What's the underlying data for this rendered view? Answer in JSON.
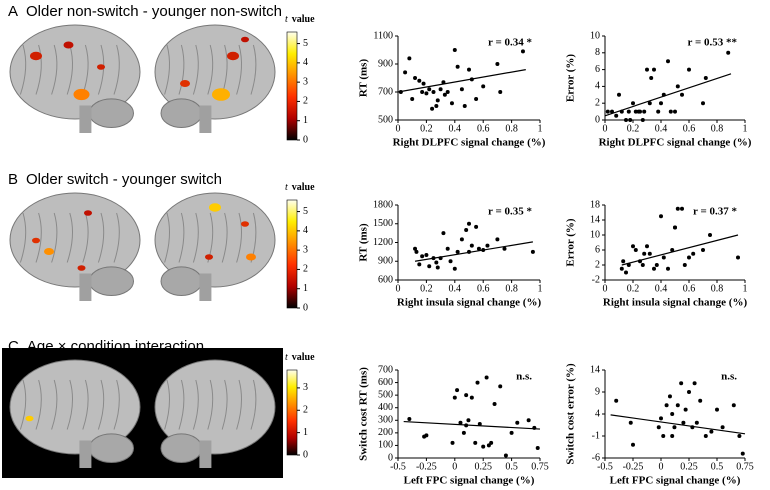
{
  "panels": [
    {
      "letter": "A",
      "title": "Older non-switch - younger non-switch"
    },
    {
      "letter": "B",
      "title": "Older switch - younger switch"
    },
    {
      "letter": "C",
      "title": "Age × condition interaction"
    }
  ],
  "chart_data": [
    {
      "type": "colorbar",
      "label_symbol": "t",
      "label": "value",
      "colors": [
        "#000000",
        "#b00000",
        "#ff3000",
        "#ff9000",
        "#ffee00",
        "#ffffee"
      ],
      "ylim": [
        0,
        5.6
      ],
      "yticks": [
        0,
        1,
        2,
        3,
        4,
        5
      ]
    },
    {
      "type": "scatter",
      "xlabel": "Right DLPFC signal change (%)",
      "ylabel": "RT (ms)",
      "annotation": "r = 0.34 *",
      "color": "#000000",
      "x": [
        0.02,
        0.05,
        0.08,
        0.1,
        0.12,
        0.15,
        0.17,
        0.18,
        0.2,
        0.22,
        0.24,
        0.25,
        0.27,
        0.28,
        0.3,
        0.32,
        0.33,
        0.35,
        0.38,
        0.4,
        0.42,
        0.45,
        0.47,
        0.5,
        0.52,
        0.55,
        0.6,
        0.7,
        0.72,
        0.88
      ],
      "values": [
        700,
        840,
        940,
        650,
        800,
        780,
        700,
        760,
        690,
        720,
        580,
        700,
        600,
        640,
        720,
        770,
        680,
        700,
        620,
        1000,
        880,
        720,
        600,
        860,
        790,
        650,
        740,
        900,
        700,
        990
      ],
      "trend": {
        "x": [
          0,
          0.9
        ],
        "y": [
          700,
          860
        ]
      },
      "xlim": [
        0,
        1
      ],
      "ylim": [
        500,
        1100
      ],
      "xticks": [
        0,
        0.2,
        0.4,
        0.6,
        0.8,
        1
      ],
      "yticks": [
        500,
        700,
        900,
        1100
      ]
    },
    {
      "type": "scatter",
      "xlabel": "Right DLPFC signal change (%)",
      "ylabel": "Error (%)",
      "annotation": "r = 0.53 **",
      "color": "#000000",
      "x": [
        0.02,
        0.05,
        0.08,
        0.1,
        0.12,
        0.15,
        0.17,
        0.18,
        0.2,
        0.22,
        0.24,
        0.25,
        0.27,
        0.28,
        0.3,
        0.32,
        0.33,
        0.35,
        0.38,
        0.4,
        0.42,
        0.45,
        0.47,
        0.5,
        0.52,
        0.55,
        0.6,
        0.7,
        0.72,
        0.88
      ],
      "values": [
        1,
        1,
        0.5,
        3,
        1,
        0,
        1,
        0,
        2,
        1,
        1,
        1,
        0,
        1,
        6,
        2,
        5,
        6,
        1,
        2,
        3,
        7,
        1,
        1,
        4,
        3,
        6,
        2,
        5,
        8
      ],
      "trend": {
        "x": [
          0,
          0.9
        ],
        "y": [
          0.5,
          5.5
        ]
      },
      "xlim": [
        0,
        1
      ],
      "ylim": [
        0,
        10
      ],
      "xticks": [
        0,
        0.2,
        0.4,
        0.6,
        0.8,
        1
      ],
      "yticks": [
        0,
        2,
        4,
        6,
        8,
        10
      ]
    },
    {
      "type": "colorbar",
      "label_symbol": "t",
      "label": "value",
      "colors": [
        "#000000",
        "#b00000",
        "#ff3000",
        "#ff9000",
        "#ffee00",
        "#ffffee"
      ],
      "ylim": [
        0,
        5.6
      ],
      "yticks": [
        0,
        1,
        2,
        3,
        4,
        5
      ]
    },
    {
      "type": "scatter",
      "xlabel": "Right insula signal change (%)",
      "ylabel": "RT (ms)",
      "annotation": "r = 0.35 *",
      "color": "#000000",
      "x": [
        0.12,
        0.13,
        0.15,
        0.17,
        0.2,
        0.22,
        0.25,
        0.27,
        0.28,
        0.3,
        0.32,
        0.35,
        0.37,
        0.4,
        0.42,
        0.45,
        0.48,
        0.5,
        0.5,
        0.52,
        0.55,
        0.57,
        0.6,
        0.63,
        0.7,
        0.75,
        0.95
      ],
      "values": [
        1100,
        1050,
        850,
        980,
        1000,
        820,
        950,
        880,
        800,
        950,
        1350,
        1100,
        900,
        780,
        1050,
        1250,
        1400,
        1050,
        1500,
        1150,
        1450,
        1100,
        1080,
        1150,
        1250,
        1100,
        1050
      ],
      "trend": {
        "x": [
          0.12,
          0.95
        ],
        "y": [
          900,
          1210
        ]
      },
      "xlim": [
        0,
        1
      ],
      "ylim": [
        600,
        1800
      ],
      "xticks": [
        0,
        0.2,
        0.4,
        0.6,
        0.8,
        1
      ],
      "yticks": [
        600,
        900,
        1200,
        1500,
        1800
      ]
    },
    {
      "type": "scatter",
      "xlabel": "Right insula signal change (%)",
      "ylabel": "Error (%)",
      "annotation": "r = 0.37 *",
      "color": "#000000",
      "x": [
        0.12,
        0.13,
        0.15,
        0.17,
        0.2,
        0.22,
        0.25,
        0.27,
        0.28,
        0.3,
        0.32,
        0.35,
        0.37,
        0.4,
        0.42,
        0.45,
        0.48,
        0.5,
        0.5,
        0.52,
        0.55,
        0.57,
        0.6,
        0.63,
        0.7,
        0.75,
        0.95
      ],
      "values": [
        1,
        3,
        0,
        2,
        7,
        6,
        3,
        2,
        5,
        7,
        5,
        1,
        2,
        15,
        4,
        1,
        6,
        12,
        12,
        17,
        17,
        2,
        4,
        5,
        6,
        10,
        4
      ],
      "trend": {
        "x": [
          0.12,
          0.95
        ],
        "y": [
          2,
          10
        ]
      },
      "xlim": [
        0,
        1
      ],
      "ylim": [
        -2,
        18
      ],
      "xticks": [
        0,
        0.2,
        0.4,
        0.6,
        0.8,
        1
      ],
      "yticks": [
        -2,
        2,
        6,
        10,
        14,
        18
      ]
    },
    {
      "type": "colorbar",
      "label_symbol": "t",
      "label": "value",
      "colors": [
        "#000000",
        "#b00000",
        "#ff3000",
        "#ff9000",
        "#ffee00",
        "#ffffee"
      ],
      "ylim": [
        0,
        3.8
      ],
      "yticks": [
        0,
        1,
        2,
        3
      ]
    },
    {
      "type": "scatter",
      "xlabel": "Left FPC signal change (%)",
      "ylabel": "Switch cost RT (ms)",
      "annotation": "n.s.",
      "color": "#000000",
      "x": [
        -0.4,
        -0.27,
        -0.25,
        -0.02,
        0,
        0.02,
        0.05,
        0.08,
        0.1,
        0.1,
        0.12,
        0.15,
        0.18,
        0.2,
        0.22,
        0.25,
        0.28,
        0.3,
        0.32,
        0.35,
        0.4,
        0.45,
        0.5,
        0.55,
        0.65,
        0.7,
        0.73
      ],
      "values": [
        310,
        170,
        180,
        120,
        480,
        540,
        280,
        200,
        260,
        500,
        300,
        480,
        120,
        600,
        270,
        90,
        640,
        100,
        120,
        430,
        570,
        20,
        200,
        280,
        300,
        240,
        80
      ],
      "trend": {
        "x": [
          -0.45,
          0.75
        ],
        "y": [
          290,
          230
        ]
      },
      "xlim": [
        -0.5,
        0.75
      ],
      "ylim": [
        0,
        700
      ],
      "xticks": [
        -0.5,
        -0.25,
        0,
        0.25,
        0.5,
        0.75
      ],
      "yticks": [
        0,
        100,
        200,
        300,
        400,
        500,
        600,
        700
      ]
    },
    {
      "type": "scatter",
      "xlabel": "Left FPC signal change (%)",
      "ylabel": "Switch cost error (%)",
      "annotation": "n.s.",
      "color": "#000000",
      "x": [
        -0.4,
        -0.27,
        -0.25,
        -0.02,
        0,
        0.02,
        0.05,
        0.08,
        0.1,
        0.1,
        0.12,
        0.15,
        0.18,
        0.2,
        0.22,
        0.25,
        0.28,
        0.3,
        0.32,
        0.35,
        0.4,
        0.45,
        0.5,
        0.55,
        0.65,
        0.7,
        0.73
      ],
      "values": [
        7,
        2,
        -3,
        1,
        3,
        -1,
        6,
        8,
        4,
        -1,
        1,
        6,
        11,
        2,
        5,
        9,
        1,
        11,
        2,
        7,
        -1,
        0,
        5,
        1,
        6,
        -1,
        -5
      ],
      "trend": {
        "x": [
          -0.45,
          0.75
        ],
        "y": [
          3.8,
          -0.5
        ]
      },
      "xlim": [
        -0.5,
        0.75
      ],
      "ylim": [
        -6,
        14
      ],
      "xticks": [
        -0.5,
        -0.25,
        0,
        0.25,
        0.5,
        0.75
      ],
      "yticks": [
        -6,
        -1,
        4,
        9,
        14
      ]
    }
  ]
}
